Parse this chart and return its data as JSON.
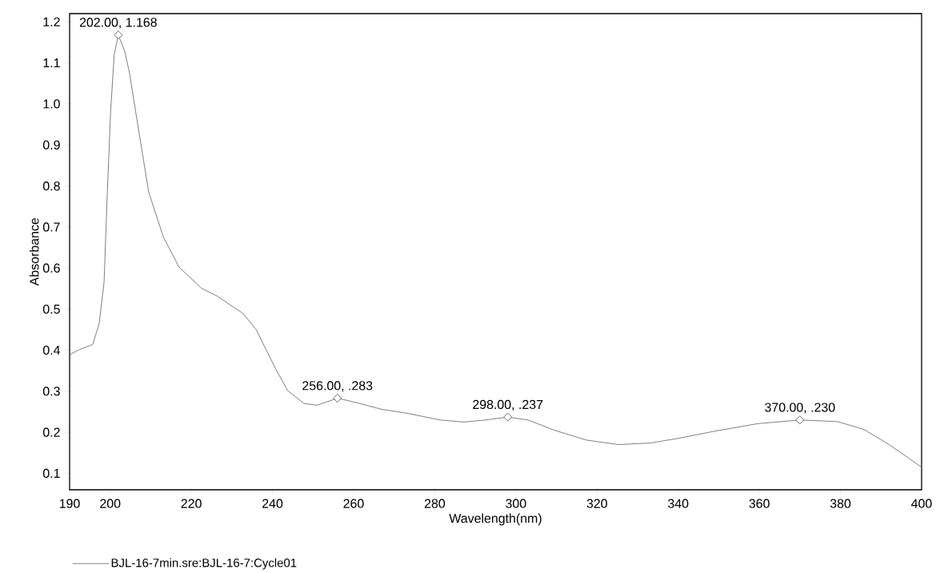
{
  "chart_data": {
    "type": "line",
    "xlabel": "Wavelength(nm)",
    "ylabel": "Absorbance",
    "xlim": [
      190,
      400
    ],
    "ylim": [
      0.06,
      1.22
    ],
    "xticks": [
      190,
      200,
      220,
      240,
      260,
      280,
      300,
      320,
      340,
      360,
      380,
      400
    ],
    "yticks": [
      0.1,
      0.2,
      0.3,
      0.4,
      0.5,
      0.6,
      0.7,
      0.8,
      0.9,
      {
        "value": 1.0,
        "label": "1.0"
      },
      1.1,
      1.2
    ],
    "legend": "bottom left",
    "line_style": "solid",
    "series": [
      {
        "name": "BJL-16-7min.sre:BJL-16-7:Cycle01",
        "color": "#808080",
        "x": [
          190,
          192.5,
          195.7,
          197.3,
          198.5,
          199.3,
          200.1,
          201.0,
          202,
          203.6,
          204.8,
          206.8,
          209.5,
          213.1,
          217.0,
          222.5,
          226.5,
          232.8,
          236.0,
          240.7,
          243.8,
          247.8,
          251,
          256,
          260,
          266.9,
          273.4,
          281.3,
          287.2,
          292.5,
          298,
          303,
          309.5,
          317.4,
          325.3,
          333.2,
          339.9,
          349.7,
          359.6,
          370,
          379.3,
          385.8,
          392.3,
          400
        ],
        "values": [
          0.389,
          0.402,
          0.414,
          0.465,
          0.567,
          0.785,
          0.98,
          1.12,
          1.168,
          1.128,
          1.073,
          0.949,
          0.785,
          0.676,
          0.602,
          0.551,
          0.531,
          0.489,
          0.45,
          0.356,
          0.301,
          0.27,
          0.266,
          0.283,
          0.274,
          0.256,
          0.246,
          0.23,
          0.225,
          0.23,
          0.237,
          0.23,
          0.205,
          0.181,
          0.17,
          0.174,
          0.185,
          0.204,
          0.221,
          0.23,
          0.226,
          0.207,
          0.168,
          0.115
        ]
      }
    ],
    "annotations": [
      {
        "text": "202.00, 1.168",
        "x": 202,
        "y": 1.168
      },
      {
        "text": "256.00, .283",
        "x": 256,
        "y": 0.283
      },
      {
        "text": "298.00, .237",
        "x": 298,
        "y": 0.237
      },
      {
        "text": "370.00, .230",
        "x": 370,
        "y": 0.23
      }
    ]
  }
}
